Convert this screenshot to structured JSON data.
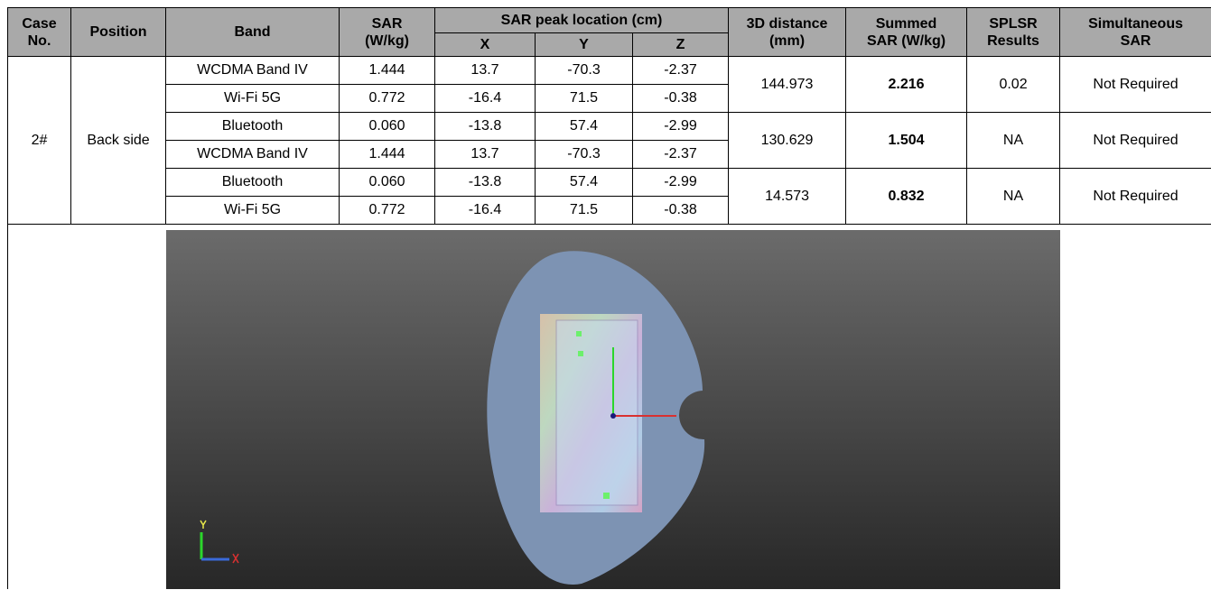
{
  "table": {
    "header": {
      "case_no": "Case\nNo.",
      "position": "Position",
      "band": "Band",
      "sar": "SAR\n(W/kg)",
      "peak_location": "SAR peak location (cm)",
      "x": "X",
      "y": "Y",
      "z": "Z",
      "distance": "3D distance\n(mm)",
      "summed": "Summed\nSAR (W/kg)",
      "splsr": "SPLSR\nResults",
      "simultaneous": "Simultaneous\nSAR"
    },
    "case": {
      "no": "2#",
      "position": "Back side"
    },
    "groups": [
      {
        "bands": [
          {
            "band": "WCDMA Band IV",
            "sar": "1.444",
            "x": "13.7",
            "y": "-70.3",
            "z": "-2.37"
          },
          {
            "band": "Wi-Fi 5G",
            "sar": "0.772",
            "x": "-16.4",
            "y": "71.5",
            "z": "-0.38"
          }
        ],
        "distance": "144.973",
        "summed": "2.216",
        "splsr": "0.02",
        "simultaneous": "Not Required"
      },
      {
        "bands": [
          {
            "band": "Bluetooth",
            "sar": "0.060",
            "x": "-13.8",
            "y": "57.4",
            "z": "-2.99"
          },
          {
            "band": "WCDMA Band IV",
            "sar": "1.444",
            "x": "13.7",
            "y": "-70.3",
            "z": "-2.37"
          }
        ],
        "distance": "130.629",
        "summed": "1.504",
        "splsr": "NA",
        "simultaneous": "Not Required"
      },
      {
        "bands": [
          {
            "band": "Bluetooth",
            "sar": "0.060",
            "x": "-13.8",
            "y": "57.4",
            "z": "-2.99"
          },
          {
            "band": "Wi-Fi 5G",
            "sar": "0.772",
            "x": "-16.4",
            "y": "71.5",
            "z": "-0.38"
          }
        ],
        "distance": "14.573",
        "summed": "0.832",
        "splsr": "NA",
        "simultaneous": "Not Required"
      }
    ]
  }
}
